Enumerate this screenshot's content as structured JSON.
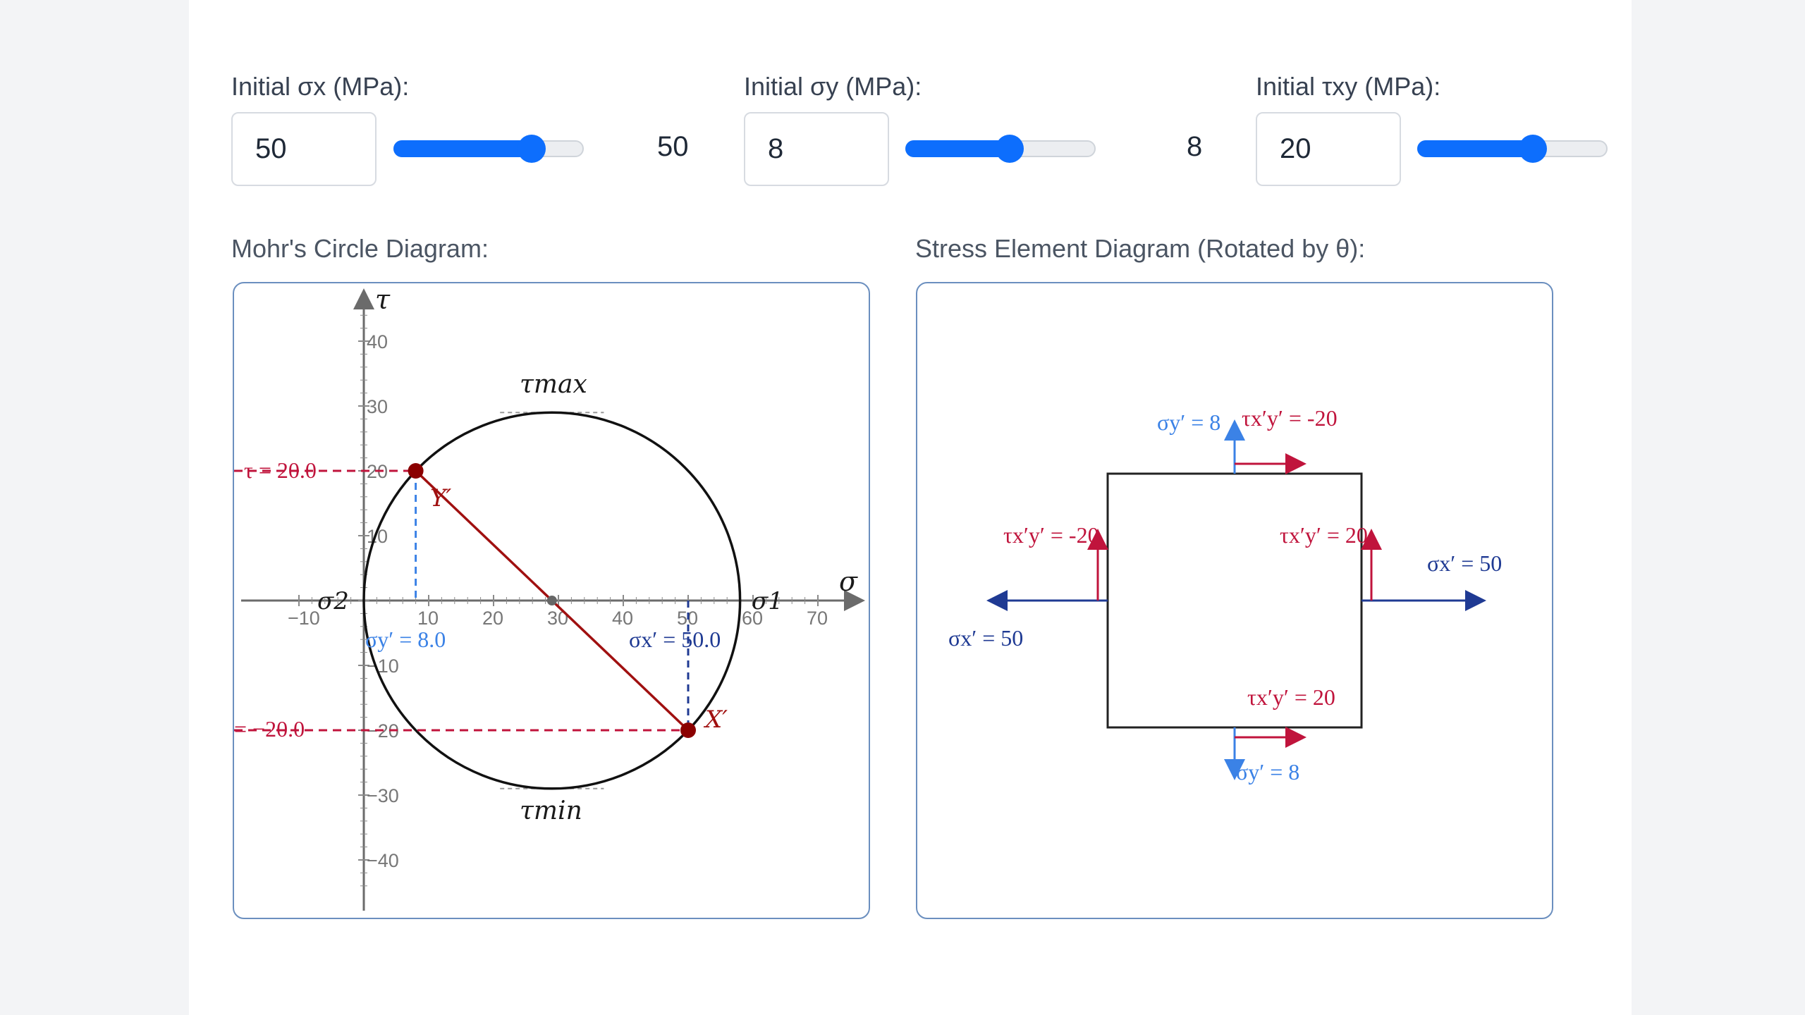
{
  "controls": [
    {
      "label": "Initial σx (MPa):",
      "value": "50",
      "readout": "50",
      "fraction": 0.72
    },
    {
      "label": "Initial σy (MPa):",
      "value": "8",
      "readout": "8",
      "fraction": 0.54
    },
    {
      "label": "Initial τxy (MPa):",
      "value": "20",
      "readout": "",
      "fraction": 0.6
    }
  ],
  "mohr": {
    "title": "Mohr's Circle Diagram:",
    "axis_sigma": "σ",
    "axis_tau": "τ",
    "tau_max": "τmax",
    "tau_min": "τmin",
    "sigma1": "σ1",
    "sigma2": "σ2",
    "point_y": "Y′",
    "point_x": "X′",
    "tau_top_label": "τ = 20.0",
    "tau_bottom_label": "= −20.0",
    "sigma_y_label": "σy′ = 8.0",
    "sigma_x_label": "σx′ = 50.0",
    "x_ticks": [
      "−10",
      "10",
      "20",
      "30",
      "40",
      "50",
      "60",
      "70"
    ],
    "y_ticks": [
      "40",
      "30",
      "20",
      "10",
      "−10",
      "−20",
      "−30",
      "−40"
    ]
  },
  "chart_data": {
    "type": "scatter",
    "title": "Mohr's Circle Diagram:",
    "xlabel": "σ",
    "ylabel": "τ",
    "xlim": [
      -14,
      76
    ],
    "ylim": [
      -48,
      48
    ],
    "grid": false,
    "circle": {
      "center": 29,
      "radius": 29
    },
    "points": [
      {
        "name": "Y′",
        "x": 8,
        "y": 20
      },
      {
        "name": "X′",
        "x": 50,
        "y": -20
      }
    ],
    "x_ticks": [
      -10,
      10,
      20,
      30,
      40,
      50,
      60,
      70
    ],
    "y_ticks": [
      -40,
      -30,
      -20,
      -10,
      10,
      20,
      30,
      40
    ]
  },
  "element": {
    "title": "Stress Element Diagram (Rotated by θ):",
    "sigma_y_top": "σy′ = 8",
    "tau_top": "τx′y′ = -20",
    "tau_left": "τx′y′ = -20",
    "tau_right": "τx′y′ = 20",
    "sigma_x_right": "σx′ = 50",
    "sigma_x_left": "σx′ = 50",
    "tau_bottom": "τx′y′ = 20",
    "sigma_y_bottom": "σy′ = 8"
  },
  "colors": {
    "accent": "#0d6efd",
    "shear": "#c0143c",
    "normal_x": "#1f3a93",
    "normal_y": "#3b82e6",
    "point": "#8b0000"
  }
}
